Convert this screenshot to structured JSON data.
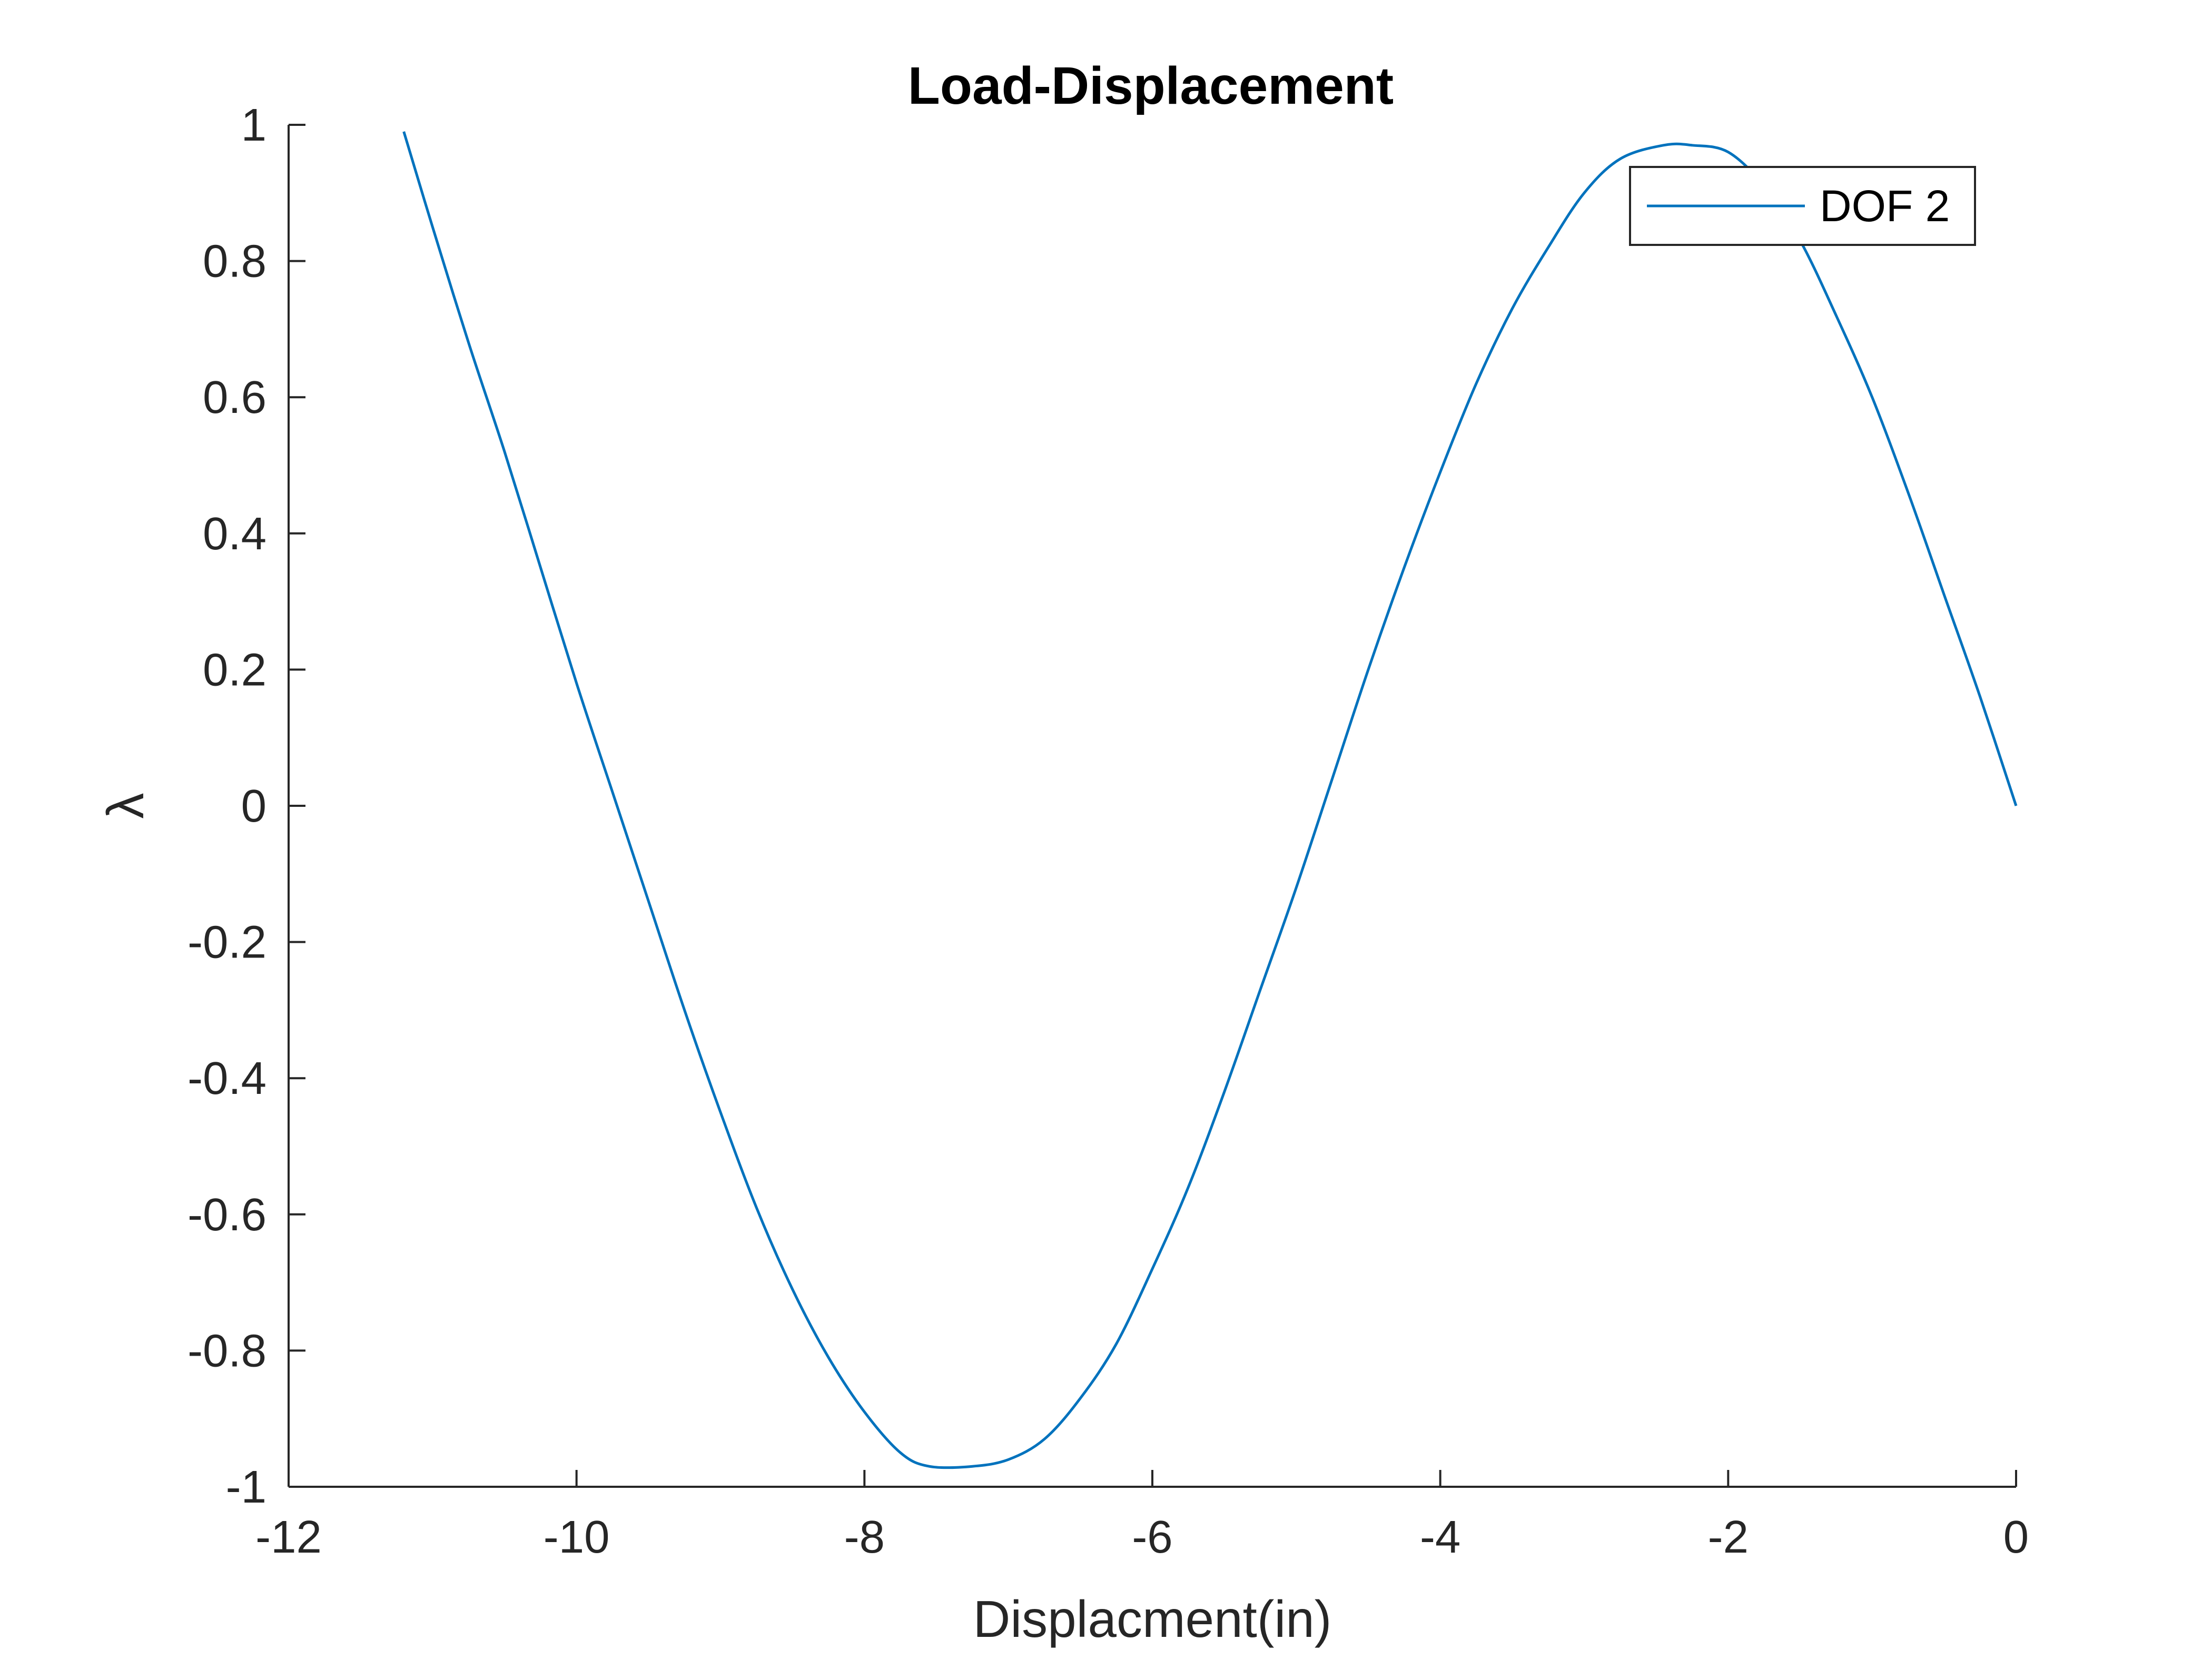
{
  "chart_data": {
    "type": "line",
    "title": "Load-Displacement",
    "xlabel": "Displacment(in)",
    "ylabel": "λ",
    "xlim": [
      -12,
      0
    ],
    "ylim": [
      -1,
      1
    ],
    "xticks": [
      -12,
      -10,
      -8,
      -6,
      -4,
      -2,
      0
    ],
    "yticks": [
      -1,
      -0.8,
      -0.6,
      -0.4,
      -0.2,
      0,
      0.2,
      0.4,
      0.6,
      0.8,
      1
    ],
    "xtick_labels": [
      "-12",
      "-10",
      "-8",
      "-6",
      "-4",
      "-2",
      "0"
    ],
    "ytick_labels": [
      "-1",
      "-0.8",
      "-0.6",
      "-0.4",
      "-0.2",
      "0",
      "0.2",
      "0.4",
      "0.6",
      "0.8",
      "1"
    ],
    "grid": false,
    "legend_position": "top-right",
    "series": [
      {
        "name": "DOF 2",
        "color": "#0072BD",
        "x": [
          0,
          -0.25,
          -0.5,
          -0.75,
          -1.0,
          -1.25,
          -1.5,
          -1.75,
          -2.0,
          -2.25,
          -2.45,
          -2.75,
          -3.0,
          -3.25,
          -3.5,
          -3.75,
          -4.0,
          -4.25,
          -4.5,
          -4.75,
          -5.0,
          -5.25,
          -5.5,
          -5.75,
          -6.0,
          -6.25,
          -6.5,
          -6.75,
          -7.0,
          -7.25,
          -7.55,
          -7.75,
          -8.0,
          -8.25,
          -8.5,
          -8.75,
          -9.0,
          -9.25,
          -9.5,
          -9.75,
          -10.0,
          -10.25,
          -10.5,
          -10.75,
          -11.0,
          -11.2
        ],
        "y": [
          0,
          0.16,
          0.31,
          0.46,
          0.6,
          0.72,
          0.83,
          0.91,
          0.96,
          0.97,
          0.97,
          0.95,
          0.9,
          0.82,
          0.73,
          0.62,
          0.49,
          0.35,
          0.2,
          0.04,
          -0.12,
          -0.27,
          -0.42,
          -0.56,
          -0.68,
          -0.79,
          -0.87,
          -0.93,
          -0.96,
          -0.97,
          -0.97,
          -0.95,
          -0.89,
          -0.81,
          -0.71,
          -0.59,
          -0.45,
          -0.3,
          -0.14,
          0.02,
          0.18,
          0.35,
          0.52,
          0.68,
          0.85,
          0.99
        ]
      }
    ]
  }
}
